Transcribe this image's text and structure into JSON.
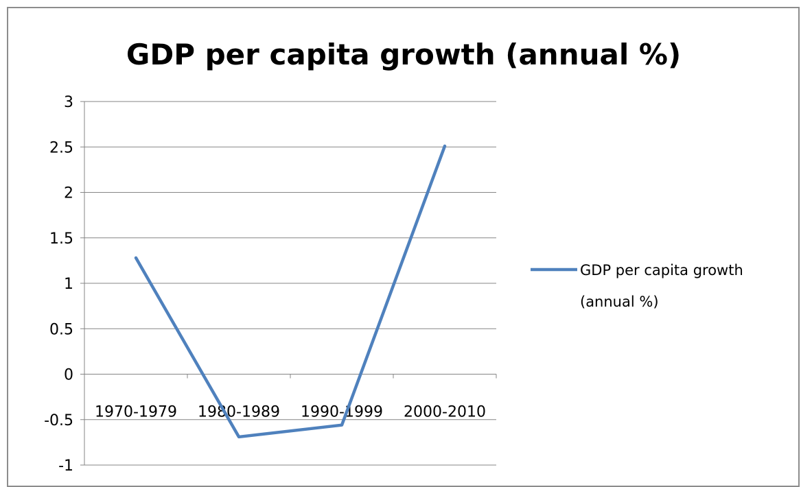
{
  "chart_data": {
    "type": "line",
    "title": "GDP per capita growth (annual %)",
    "categories": [
      "1970-1979",
      "1980-1989",
      "1990-1999",
      "2000-2010"
    ],
    "series": [
      {
        "name": "GDP per capita growth (annual %)",
        "values": [
          1.28,
          -0.69,
          -0.56,
          2.51
        ],
        "color": "#4f81bd"
      }
    ],
    "legend_lines": [
      "GDP per capita growth",
      "(annual %)"
    ],
    "ylim": [
      -1,
      3
    ],
    "yticks": [
      -1,
      -0.5,
      0,
      0.5,
      1,
      1.5,
      2,
      2.5,
      3
    ],
    "grid": true,
    "legend_position": "right"
  }
}
